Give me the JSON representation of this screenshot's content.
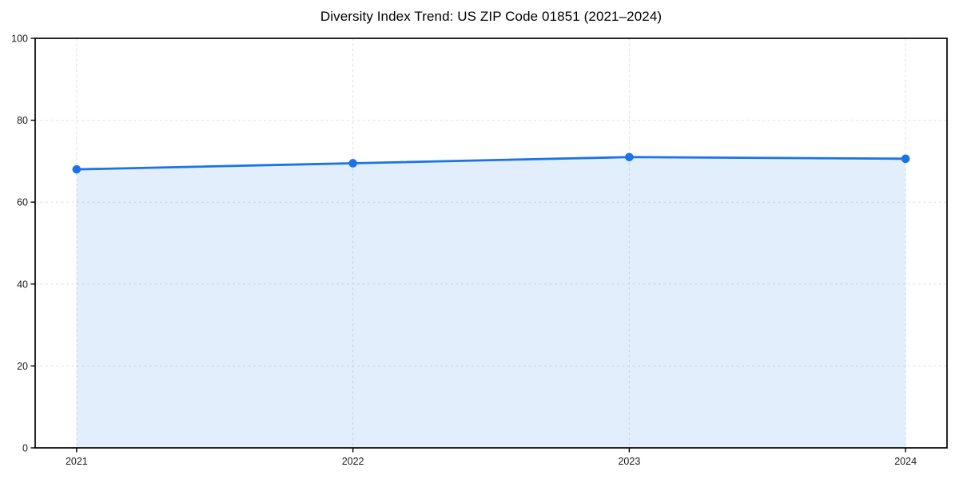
{
  "page": {
    "background": "#ffffff"
  },
  "chart_data": {
    "type": "area",
    "title": "Diversity Index Trend: US ZIP Code 01851 (2021–2024)",
    "x": [
      2021,
      2022,
      2023,
      2024
    ],
    "series": [
      {
        "name": "Diversity Index",
        "values": [
          68.0,
          69.5,
          71.0,
          70.6
        ]
      }
    ],
    "xlabel": "",
    "ylabel": "",
    "xlim": [
      2020.85,
      2024.15
    ],
    "ylim": [
      0,
      100
    ],
    "xticks": [
      2021,
      2022,
      2023,
      2024
    ],
    "yticks": [
      0,
      20,
      40,
      60,
      80,
      100
    ],
    "grid": true,
    "grid_style": "dashed",
    "legend_position": "none",
    "colors": {
      "line": "#1a73e8",
      "marker": "#1a73e8",
      "fill": "rgba(26, 115, 232, 0.12)",
      "grid": "#dedede",
      "spine": "#000000",
      "tick": "#000000",
      "tick_label": "#1a1a1a",
      "title": "#000000"
    }
  }
}
